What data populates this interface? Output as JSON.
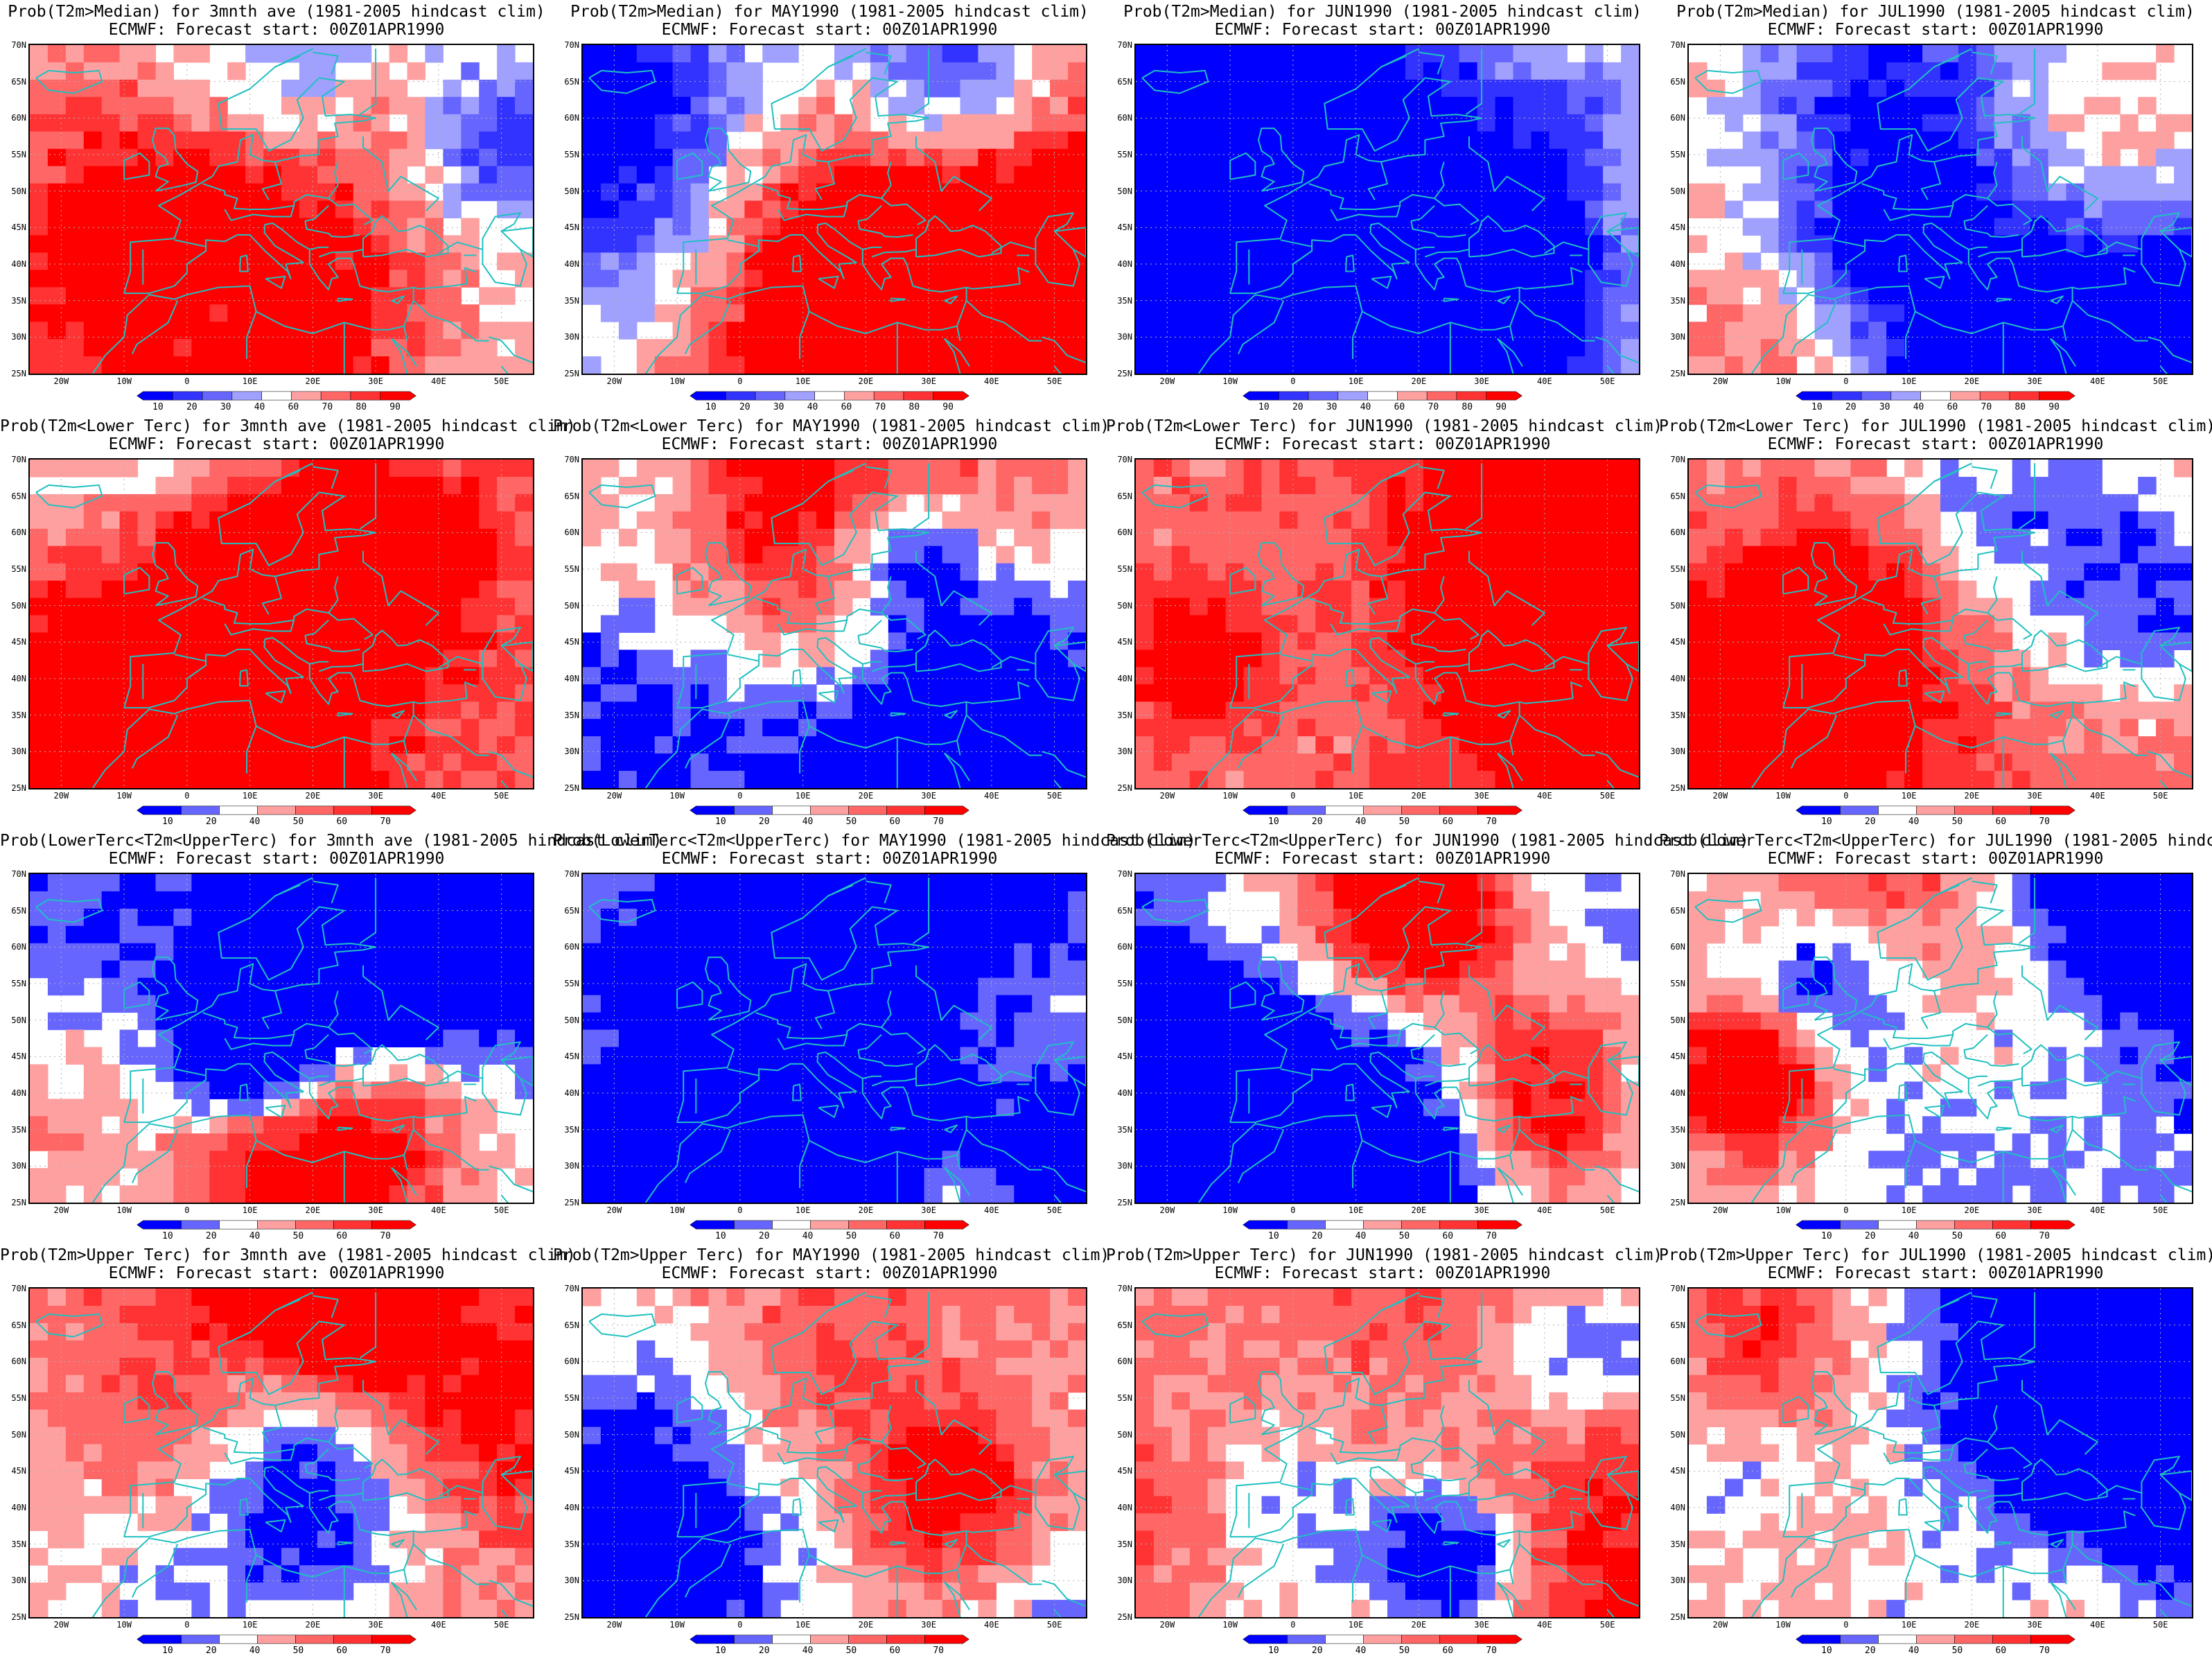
{
  "panels": [
    {
      "title": "Prob(T2m>Median) for 3mnth ave (1981-2005 hindcast clim)",
      "subtitle": "ECMWF: Forecast start: 00Z01APR1990",
      "scheme": "median",
      "seed": 11,
      "bias": 0.55
    },
    {
      "title": "Prob(T2m>Median) for MAY1990 (1981-2005 hindcast clim)",
      "subtitle": "ECMWF: Forecast start: 00Z01APR1990",
      "scheme": "median",
      "seed": 12,
      "bias": 0.58
    },
    {
      "title": "Prob(T2m>Median) for JUN1990 (1981-2005 hindcast clim)",
      "subtitle": "ECMWF: Forecast start: 00Z01APR1990",
      "scheme": "median",
      "seed": 13,
      "bias": 0.5
    },
    {
      "title": "Prob(T2m>Median) for JUL1990 (1981-2005 hindcast clim)",
      "subtitle": "ECMWF: Forecast start: 00Z01APR1990",
      "scheme": "median",
      "seed": 14,
      "bias": 0.52
    },
    {
      "title": "Prob(T2m<Lower Terc) for 3mnth ave (1981-2005 hindcast clim)",
      "subtitle": "ECMWF: Forecast start: 00Z01APR1990",
      "scheme": "terc",
      "seed": 21,
      "bias": 0.62
    },
    {
      "title": "Prob(T2m<Lower Terc) for MAY1990 (1981-2005 hindcast clim)",
      "subtitle": "ECMWF: Forecast start: 00Z01APR1990",
      "scheme": "terc",
      "seed": 22,
      "bias": 0.6
    },
    {
      "title": "Prob(T2m<Lower Terc) for JUN1990 (1981-2005 hindcast clim)",
      "subtitle": "ECMWF: Forecast start: 00Z01APR1990",
      "scheme": "terc",
      "seed": 23,
      "bias": 0.64
    },
    {
      "title": "Prob(T2m<Lower Terc) for JUL1990 (1981-2005 hindcast clim)",
      "subtitle": "ECMWF: Forecast start: 00Z01APR1990",
      "scheme": "terc",
      "seed": 24,
      "bias": 0.63
    },
    {
      "title": "Prob(LowerTerc<T2m<UpperTerc) for 3mnth ave (1981-2005 hindcast clim)",
      "subtitle": "ECMWF: Forecast start: 00Z01APR1990",
      "scheme": "terc",
      "seed": 31,
      "bias": 0.22
    },
    {
      "title": "Prob(LowerTerc<T2m<UpperTerc) for MAY1990 (1981-2005 hindcast clim)",
      "subtitle": "ECMWF: Forecast start: 00Z01APR1990",
      "scheme": "terc",
      "seed": 32,
      "bias": 0.2
    },
    {
      "title": "Prob(LowerTerc<T2m<UpperTerc) for JUN1990 (1981-2005 hindcast clim)",
      "subtitle": "ECMWF: Forecast start: 00Z01APR1990",
      "scheme": "terc",
      "seed": 33,
      "bias": 0.2
    },
    {
      "title": "Prob(LowerTerc<T2m<UpperTerc) for JUL1990 (1981-2005 hindcast clim)",
      "subtitle": "ECMWF: Forecast start: 00Z01APR1990",
      "scheme": "terc",
      "seed": 34,
      "bias": 0.21
    },
    {
      "title": "Prob(T2m>Upper Terc) for 3mnth ave (1981-2005 hindcast clim)",
      "subtitle": "ECMWF: Forecast start: 00Z01APR1990",
      "scheme": "terc",
      "seed": 41,
      "bias": 0.6
    },
    {
      "title": "Prob(T2m>Upper Terc) for MAY1990 (1981-2005 hindcast clim)",
      "subtitle": "ECMWF: Forecast start: 00Z01APR1990",
      "scheme": "terc",
      "seed": 42,
      "bias": 0.62
    },
    {
      "title": "Prob(T2m>Upper Terc) for JUN1990 (1981-2005 hindcast clim)",
      "subtitle": "ECMWF: Forecast start: 00Z01APR1990",
      "scheme": "terc",
      "seed": 43,
      "bias": 0.6
    },
    {
      "title": "Prob(T2m>Upper Terc) for JUL1990 (1981-2005 hindcast clim)",
      "subtitle": "ECMWF: Forecast start: 00Z01APR1990",
      "scheme": "terc",
      "seed": 44,
      "bias": 0.58
    }
  ],
  "lat_labels": [
    "70N",
    "65N",
    "60N",
    "55N",
    "50N",
    "45N",
    "40N",
    "35N",
    "30N",
    "25N"
  ],
  "lon_labels": [
    "20W",
    "10W",
    "0",
    "10E",
    "20E",
    "30E",
    "40E",
    "50E"
  ],
  "colorbars": {
    "median": {
      "ticks": [
        "10",
        "20",
        "30",
        "40",
        "60",
        "70",
        "80",
        "90"
      ],
      "colors": [
        "#0000ff",
        "#3333ff",
        "#6666ff",
        "#a0a0ff",
        "#ffffff",
        "#ffa0a0",
        "#ff6666",
        "#ff3333",
        "#ff0000"
      ]
    },
    "terc": {
      "ticks": [
        "10",
        "20",
        "40",
        "50",
        "60",
        "70"
      ],
      "colors": [
        "#0000ff",
        "#6666ff",
        "#ffffff",
        "#ffa0a0",
        "#ff6666",
        "#ff3333",
        "#ff0000"
      ]
    }
  },
  "colors": {
    "coastline": "#20c0c0",
    "grid": "#b0b0b0",
    "frame": "#000000"
  }
}
